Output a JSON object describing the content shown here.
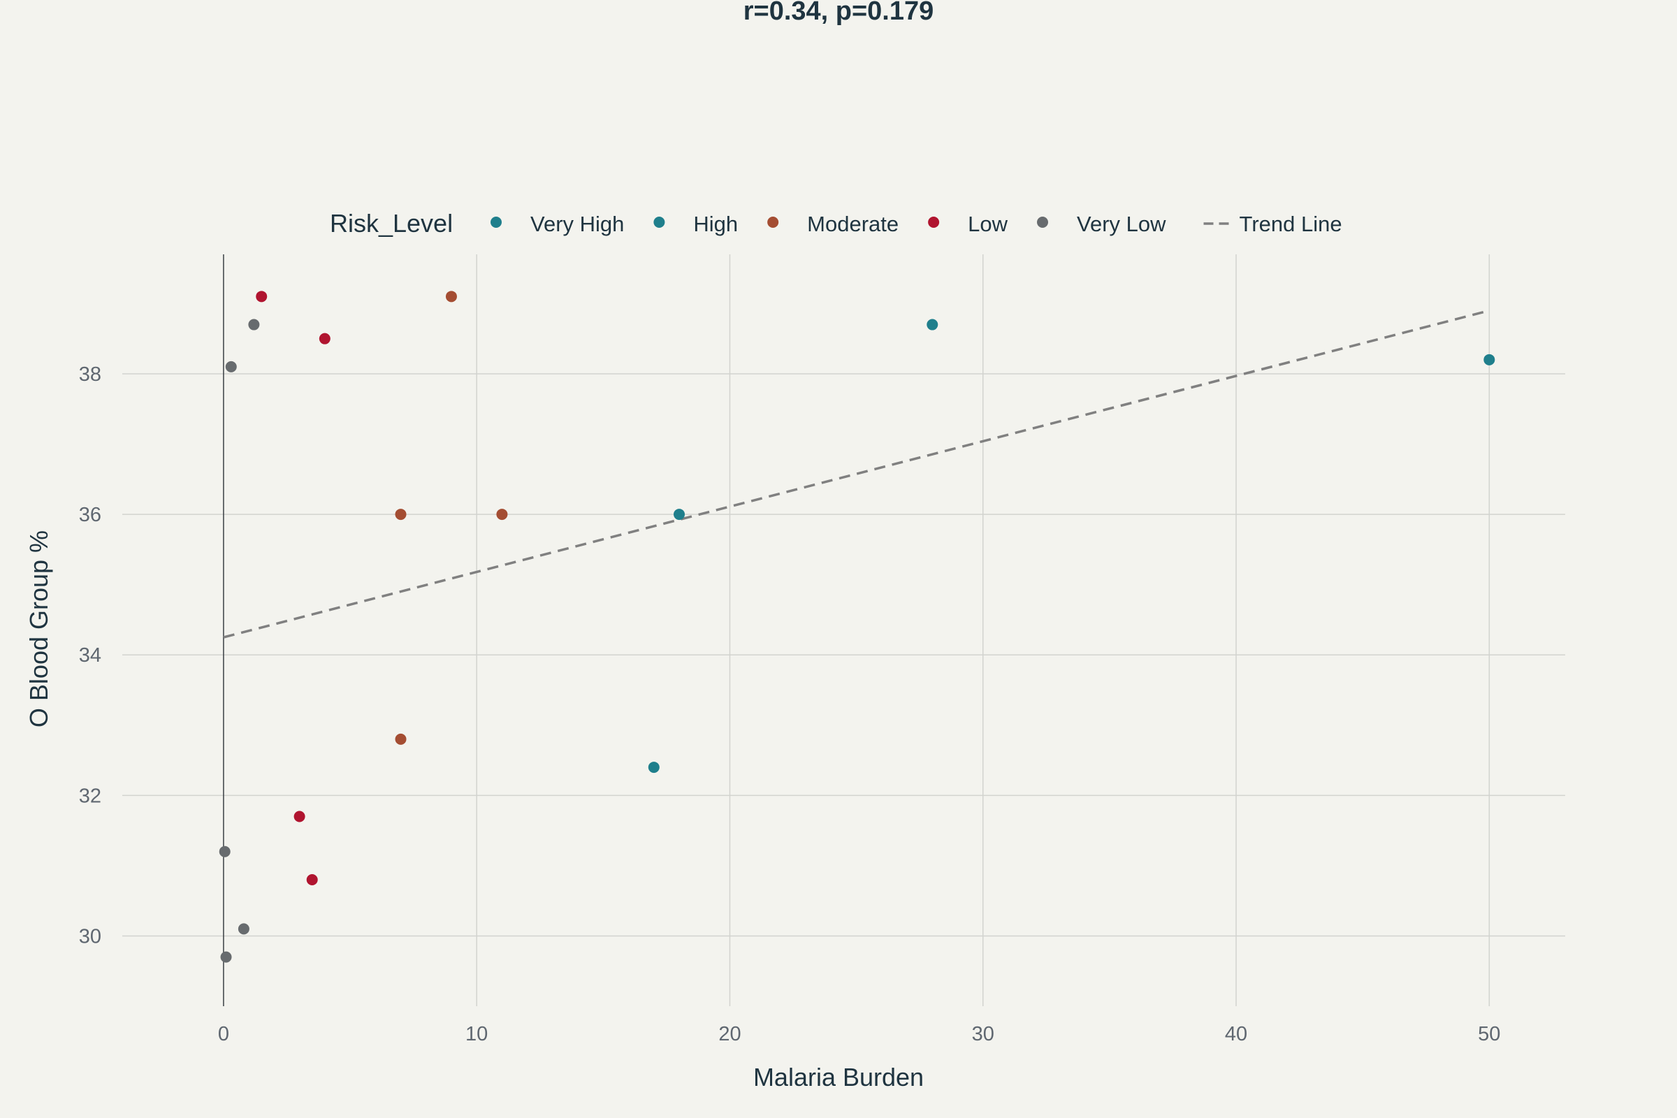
{
  "chart_data": {
    "type": "scatter",
    "title": "r=0.34, p=0.179",
    "xlabel": "Malaria Burden",
    "ylabel": "O Blood Group %",
    "xlim": [
      -4,
      53
    ],
    "ylim": [
      29,
      39.7
    ],
    "x_ticks": [
      0,
      10,
      20,
      30,
      40,
      50
    ],
    "y_ticks": [
      30,
      32,
      34,
      36,
      38
    ],
    "x_tick_labels": [
      "0",
      "10",
      "20",
      "30",
      "40",
      "50"
    ],
    "y_tick_labels": [
      "30",
      "32",
      "34",
      "36",
      "38"
    ],
    "grid": true,
    "legend": {
      "title": "Risk_Level",
      "placement": "top",
      "entries": [
        {
          "name": "Very High",
          "kind": "marker"
        },
        {
          "name": "High",
          "kind": "marker"
        },
        {
          "name": "Moderate",
          "kind": "marker"
        },
        {
          "name": "Low",
          "kind": "marker"
        },
        {
          "name": "Very Low",
          "kind": "marker"
        },
        {
          "name": "Trend Line",
          "kind": "dash"
        }
      ]
    },
    "series": [
      {
        "name": "Very High",
        "color": "#1f7f8c",
        "points": [
          [
            50,
            38.2
          ]
        ]
      },
      {
        "name": "High",
        "color": "#1f7f8c",
        "points": [
          [
            28,
            38.7
          ],
          [
            18,
            36.0
          ],
          [
            17,
            32.4
          ]
        ]
      },
      {
        "name": "Moderate",
        "color": "#a44d32",
        "points": [
          [
            9,
            39.1
          ],
          [
            7,
            36.0
          ],
          [
            11,
            36.0
          ],
          [
            7,
            32.8
          ]
        ]
      },
      {
        "name": "Low",
        "color": "#b0142f",
        "points": [
          [
            1.5,
            39.1
          ],
          [
            4,
            38.5
          ],
          [
            3,
            31.7
          ],
          [
            3.5,
            30.8
          ]
        ]
      },
      {
        "name": "Very Low",
        "color": "#676b6e",
        "points": [
          [
            1.2,
            38.7
          ],
          [
            0.3,
            38.1
          ],
          [
            0.05,
            31.2
          ],
          [
            0.8,
            30.1
          ],
          [
            0.1,
            29.7
          ]
        ]
      }
    ],
    "trend_line": {
      "name": "Trend Line",
      "color": "#808080",
      "x": [
        0,
        50
      ],
      "y": [
        34.25,
        38.9
      ]
    }
  }
}
